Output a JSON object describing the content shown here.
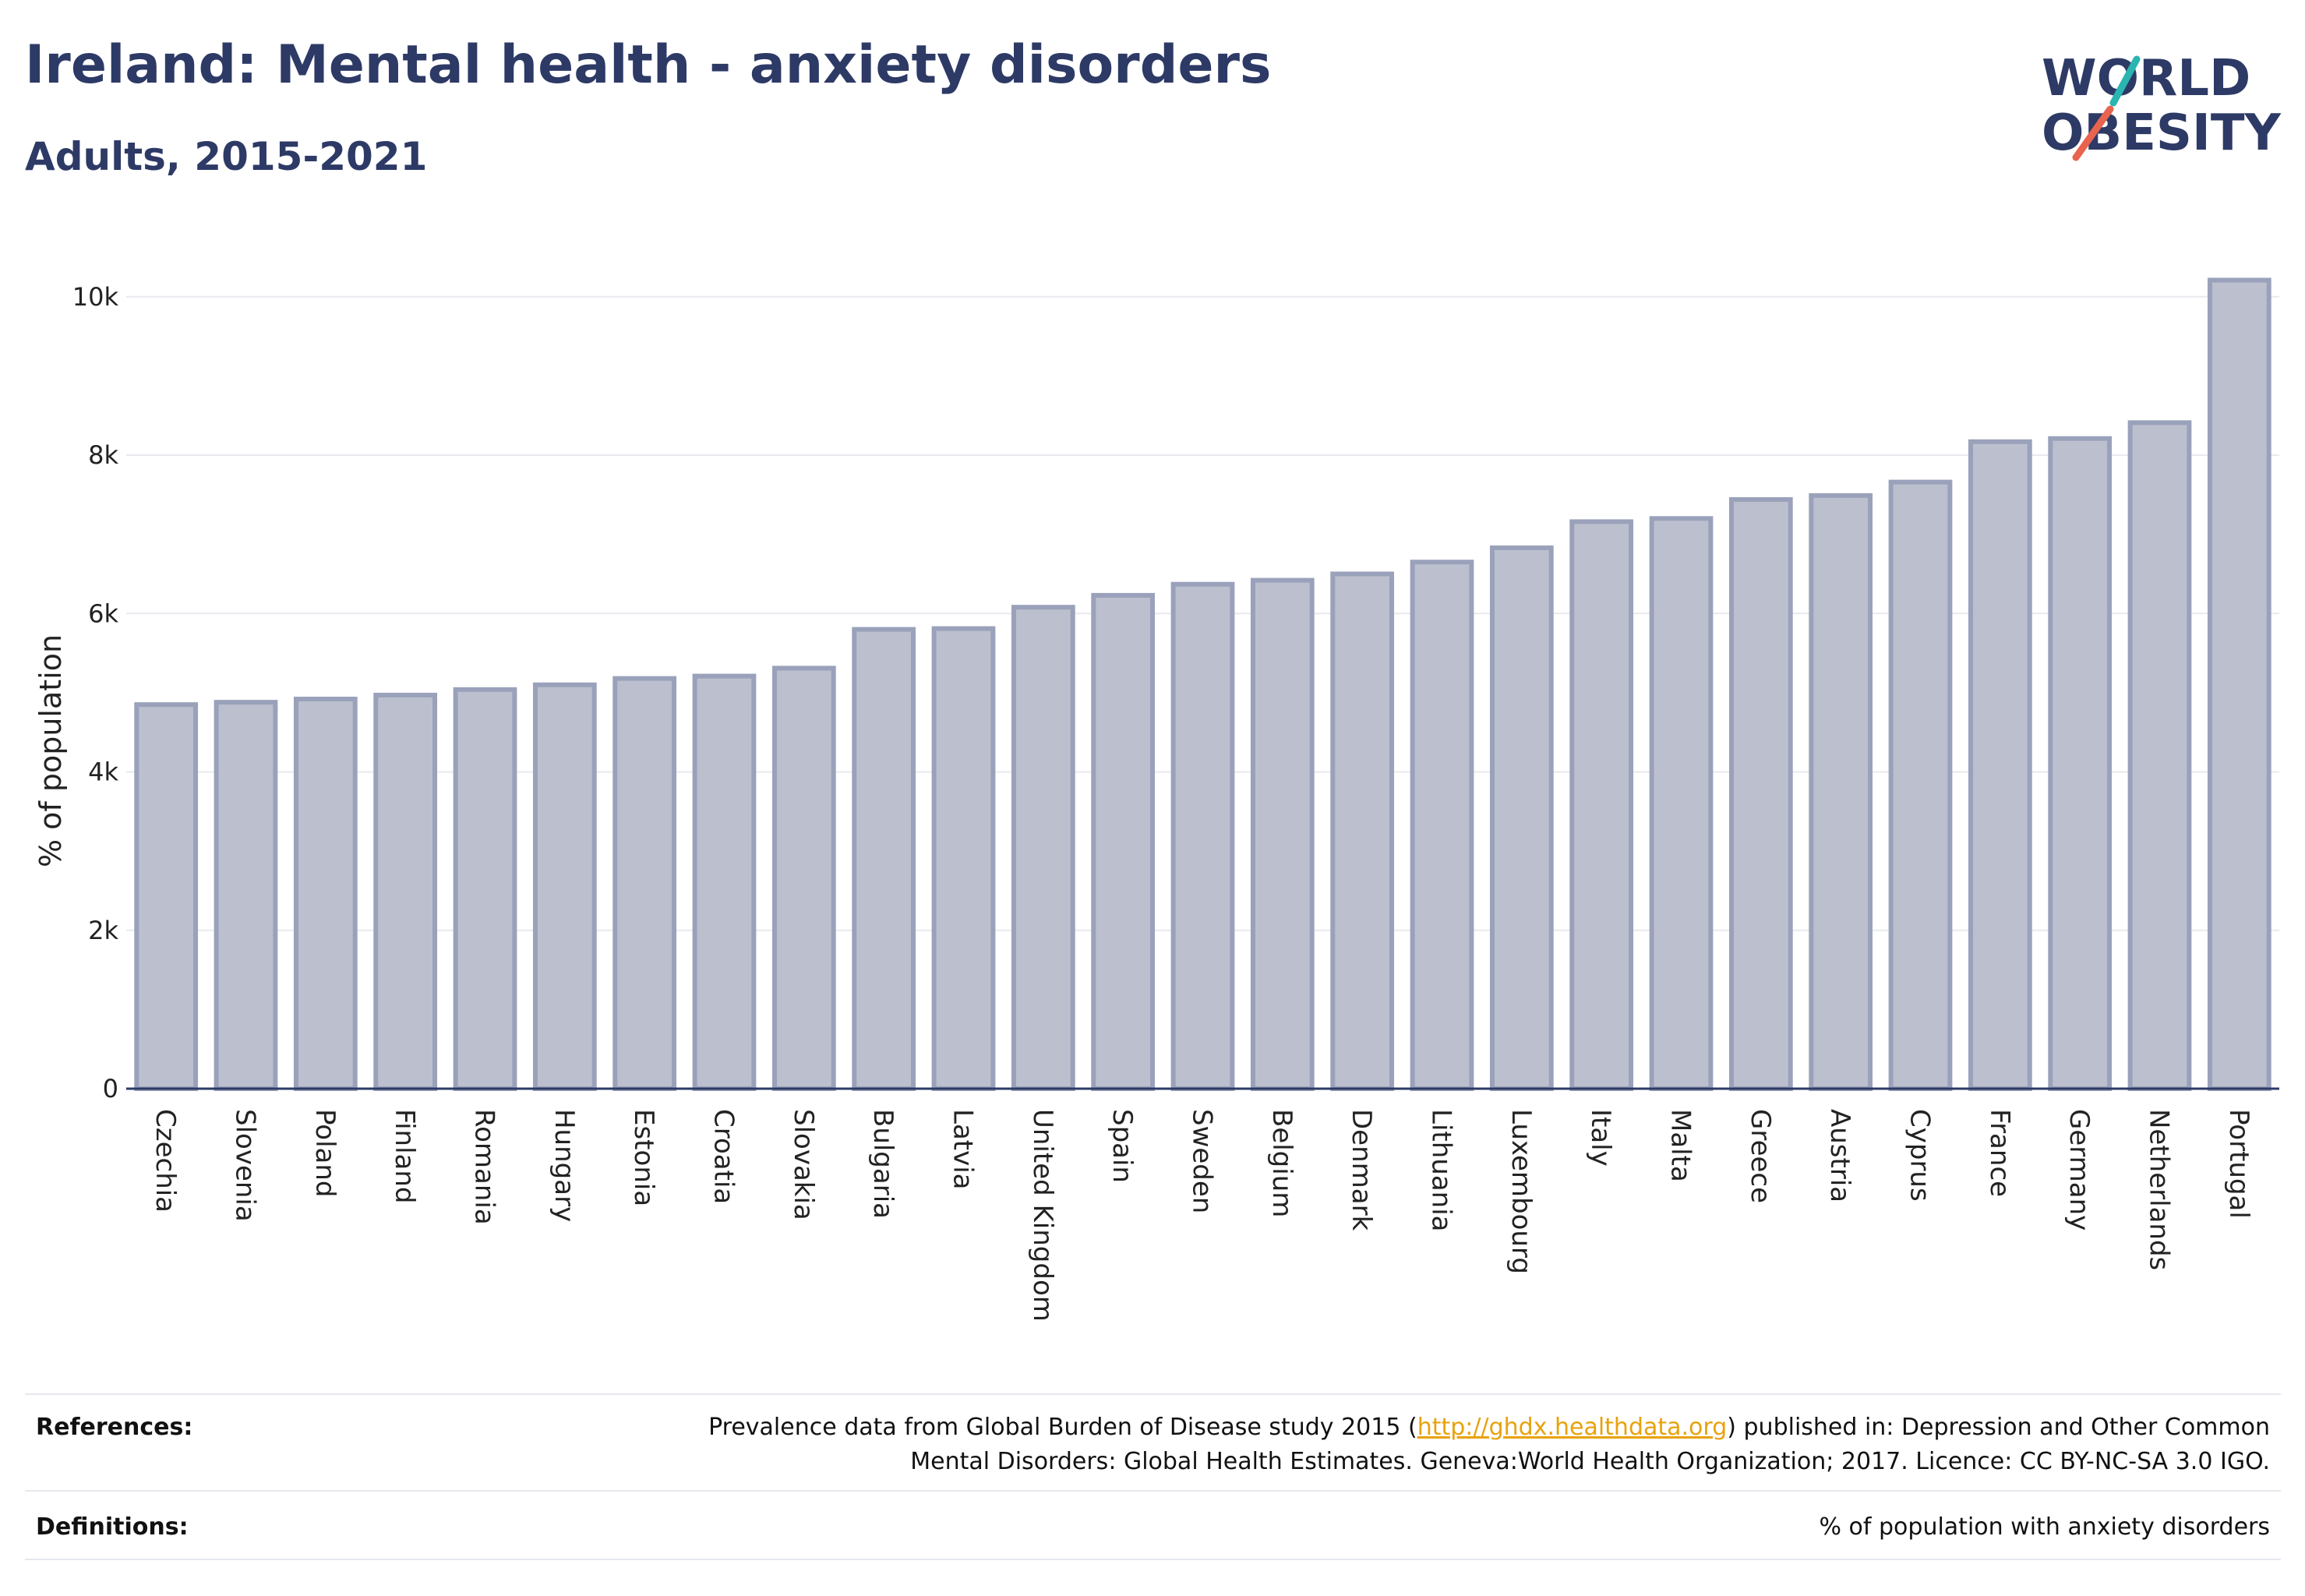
{
  "header": {
    "title": "Ireland: Mental health - anxiety disorders",
    "subtitle": "Adults, 2015-2021"
  },
  "logo": {
    "line1": "WORLD",
    "line2": "OBESITY",
    "colors": {
      "text": "#2d3a66",
      "slash_top": "#2bb5b0",
      "slash_bottom": "#e8644f"
    }
  },
  "chart_data": {
    "type": "bar",
    "ylabel": "% of population",
    "xlabel": "",
    "ylim": [
      0,
      10500
    ],
    "yticks": [
      0,
      2000,
      4000,
      6000,
      8000,
      10000
    ],
    "ytick_labels": [
      "0",
      "2k",
      "4k",
      "6k",
      "8k",
      "10k"
    ],
    "grid": true,
    "bar_fill": "#bcc0ce",
    "bar_stroke": "#9aa1ba",
    "categories": [
      "Czechia",
      "Slovenia",
      "Poland",
      "Finland",
      "Romania",
      "Hungary",
      "Estonia",
      "Croatia",
      "Slovakia",
      "Bulgaria",
      "Latvia",
      "United Kingdom",
      "Spain",
      "Sweden",
      "Belgium",
      "Denmark",
      "Lithuania",
      "Luxembourg",
      "Italy",
      "Malta",
      "Greece",
      "Austria",
      "Cyprus",
      "France",
      "Germany",
      "Netherlands",
      "Portugal"
    ],
    "values": [
      4850,
      4880,
      4920,
      4970,
      5040,
      5100,
      5180,
      5210,
      5310,
      5800,
      5810,
      6080,
      6230,
      6370,
      6420,
      6500,
      6650,
      6830,
      7160,
      7200,
      7440,
      7490,
      7660,
      8170,
      8210,
      8410,
      10210
    ]
  },
  "footer": {
    "references_label": "References:",
    "references_before_link": "Prevalence data from Global Burden of Disease study 2015 (",
    "references_link": "http://ghdx.healthdata.org",
    "references_after_link": ") published in: Depression and Other Common",
    "references_line2": "Mental Disorders: Global Health Estimates. Geneva:World Health Organization; 2017. Licence: CC BY-NC-SA 3.0 IGO.",
    "definitions_label": "Definitions:",
    "definitions_text": "% of population with anxiety disorders"
  }
}
